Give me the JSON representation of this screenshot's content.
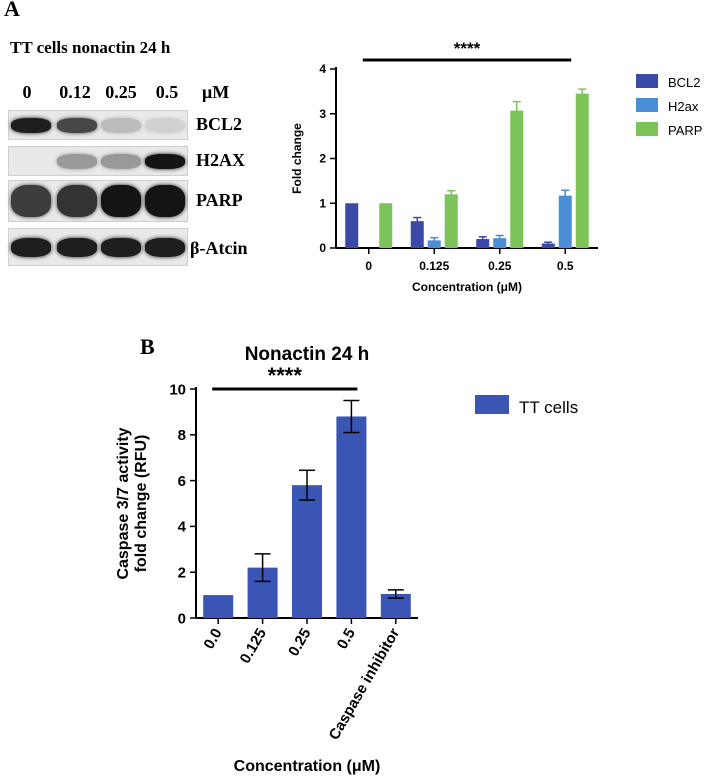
{
  "panel_a": {
    "letter": "A",
    "blot": {
      "title": "TT cells nonactin 24 h",
      "unit": "μM",
      "lanes": [
        "0",
        "0.12",
        "0.25",
        "0.5"
      ],
      "rows": [
        {
          "label": "BCL2",
          "intensity": [
            0.95,
            0.75,
            0.18,
            0.08
          ]
        },
        {
          "label": "H2AX",
          "intensity": [
            0.0,
            0.35,
            0.35,
            1.0
          ]
        },
        {
          "label": "PARP",
          "intensity": [
            0.8,
            0.85,
            1.0,
            1.0
          ]
        },
        {
          "label": "β-Atcin",
          "intensity": [
            0.95,
            0.95,
            0.95,
            0.95
          ]
        }
      ]
    }
  },
  "panel_b": {
    "letter": "B"
  },
  "colors": {
    "bcl2": "#3b4aa8",
    "h2ax": "#4a8fd6",
    "parp": "#7cc35a",
    "tt": "#3b55b5",
    "axis": "#000000"
  },
  "chart_data": [
    {
      "type": "bar",
      "title": "",
      "xlabel": "Concentration (μM)",
      "ylabel": "Fold change",
      "categories": [
        "0",
        "0.125",
        "0.25",
        "0.5"
      ],
      "ylim": [
        0,
        4
      ],
      "yticks": [
        0,
        1,
        2,
        3,
        4
      ],
      "legend_position": "right",
      "significance": "****",
      "series": [
        {
          "name": "BCL2",
          "values": [
            1.0,
            0.6,
            0.2,
            0.1
          ],
          "errors": [
            0,
            0.08,
            0.05,
            0.03
          ]
        },
        {
          "name": "H2ax",
          "values": [
            0.0,
            0.17,
            0.22,
            1.17
          ],
          "errors": [
            0,
            0.06,
            0.06,
            0.12
          ]
        },
        {
          "name": "PARP",
          "values": [
            1.0,
            1.2,
            3.07,
            3.45
          ],
          "errors": [
            0,
            0.08,
            0.2,
            0.1
          ]
        }
      ]
    },
    {
      "type": "bar",
      "title": "Nonactin 24 h",
      "xlabel": "Concentration (μM)",
      "ylabel": [
        "Caspase 3/7 activity",
        "fold change (RFU)"
      ],
      "categories": [
        "0.0",
        "0.125",
        "0.25",
        "0.5",
        "Caspase inhibitor"
      ],
      "ylim": [
        0,
        10
      ],
      "yticks": [
        0,
        2,
        4,
        6,
        8,
        10
      ],
      "legend_position": "right",
      "significance": "****",
      "series": [
        {
          "name": "TT cells",
          "values": [
            1.0,
            2.2,
            5.8,
            8.8,
            1.05
          ],
          "errors": [
            0,
            0.6,
            0.65,
            0.7,
            0.18
          ]
        }
      ]
    }
  ]
}
